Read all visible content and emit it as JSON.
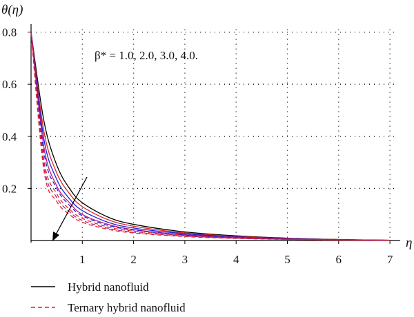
{
  "chart_data": {
    "type": "line",
    "title": "",
    "xlabel": "η",
    "ylabel": "θ(η)",
    "xlim": [
      0,
      7
    ],
    "ylim": [
      0,
      0.8
    ],
    "x_ticks": [
      1,
      2,
      3,
      4,
      5,
      6,
      7
    ],
    "y_ticks": [
      0.2,
      0.4,
      0.6,
      0.8
    ],
    "x_tick_labels": [
      "1",
      "2",
      "3",
      "4",
      "5",
      "6",
      "7"
    ],
    "y_tick_labels": [
      "0.2",
      "0.4",
      "0.6",
      "0.8"
    ],
    "grid": true,
    "legend_position": "bottom-left",
    "annotation": "β* = 1.0, 2.0, 3.0, 4.0.",
    "x": [
      0,
      0.25,
      0.5,
      0.75,
      1,
      1.5,
      2,
      3,
      4,
      5,
      6,
      7
    ],
    "series": [
      {
        "group": "Hybrid nanofluid",
        "beta": 1.0,
        "color": "#000000",
        "dash": "solid",
        "values": [
          0.8,
          0.46,
          0.29,
          0.2,
          0.145,
          0.09,
          0.062,
          0.033,
          0.018,
          0.009,
          0.004,
          0.001
        ]
      },
      {
        "group": "Hybrid nanofluid",
        "beta": 2.0,
        "color": "#d42a2a",
        "dash": "solid",
        "values": [
          0.8,
          0.42,
          0.26,
          0.18,
          0.13,
          0.08,
          0.055,
          0.029,
          0.016,
          0.008,
          0.0035,
          0.001
        ]
      },
      {
        "group": "Hybrid nanofluid",
        "beta": 3.0,
        "color": "#1f1fd6",
        "dash": "solid",
        "values": [
          0.8,
          0.39,
          0.235,
          0.16,
          0.115,
          0.07,
          0.048,
          0.026,
          0.014,
          0.007,
          0.003,
          0.001
        ]
      },
      {
        "group": "Hybrid nanofluid",
        "beta": 4.0,
        "color": "#c0167a",
        "dash": "solid",
        "values": [
          0.8,
          0.36,
          0.21,
          0.145,
          0.1,
          0.062,
          0.042,
          0.022,
          0.012,
          0.006,
          0.0025,
          0.001
        ]
      },
      {
        "group": "Ternary hybrid nanofluid",
        "beta": 1.0,
        "color": "#1f1fd6",
        "dash": "dashed",
        "values": [
          0.8,
          0.34,
          0.2,
          0.135,
          0.095,
          0.058,
          0.04,
          0.021,
          0.011,
          0.0055,
          0.0025,
          0.001
        ]
      },
      {
        "group": "Ternary hybrid nanofluid",
        "beta": 2.0,
        "color": "#d42a2a",
        "dash": "dashed",
        "values": [
          0.8,
          0.31,
          0.18,
          0.12,
          0.085,
          0.052,
          0.036,
          0.019,
          0.01,
          0.005,
          0.002,
          0.001
        ]
      },
      {
        "group": "Ternary hybrid nanofluid",
        "beta": 3.0,
        "color": "#c0167a",
        "dash": "dashed",
        "values": [
          0.8,
          0.29,
          0.165,
          0.11,
          0.077,
          0.047,
          0.032,
          0.017,
          0.009,
          0.0045,
          0.002,
          0.001
        ]
      },
      {
        "group": "Ternary hybrid nanofluid",
        "beta": 4.0,
        "color": "#e0202a",
        "dash": "dashed",
        "values": [
          0.8,
          0.27,
          0.15,
          0.1,
          0.07,
          0.043,
          0.029,
          0.015,
          0.008,
          0.004,
          0.0018,
          0.001
        ]
      }
    ]
  },
  "legend": [
    {
      "label": "Hybrid nanofluid",
      "color": "#000000",
      "dash": "solid"
    },
    {
      "label": "Ternary hybrid nanofluid",
      "color": "#e0202a",
      "dash": "dashed"
    }
  ]
}
